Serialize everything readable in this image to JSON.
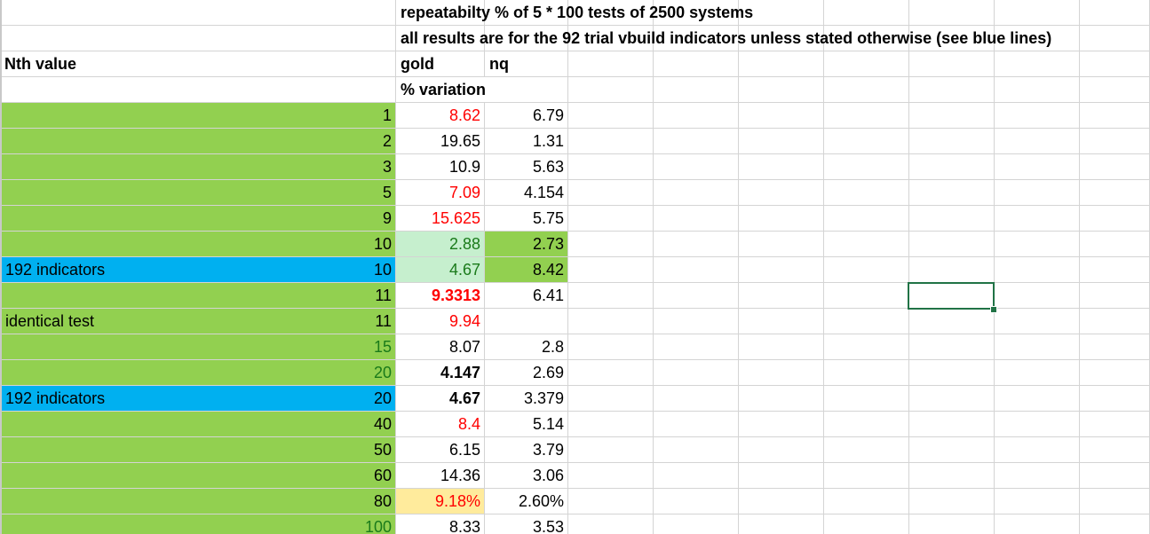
{
  "notes": {
    "line1": "repeatabilty % of 5 * 100 tests of 2500 systems",
    "line2": "all results are for the 92 trial vbuild indicators unless stated otherwise (see blue lines)"
  },
  "header": {
    "nth_value": "Nth value",
    "gold": "gold",
    "nq": "nq",
    "variation": "% variation"
  },
  "colors": {
    "green_fill": "#92d050",
    "blue_fill": "#00b0f0",
    "light_green_fill": "#c6efce",
    "yellow_fill": "#ffeb9c",
    "red_text": "#ff0000",
    "selection_border": "#217346"
  },
  "rows": [
    {
      "label": "",
      "n": "1",
      "gold": "8.62",
      "nq": "6.79"
    },
    {
      "label": "",
      "n": "2",
      "gold": "19.65",
      "nq": "1.31"
    },
    {
      "label": "",
      "n": "3",
      "gold": "10.9",
      "nq": "5.63"
    },
    {
      "label": "",
      "n": "5",
      "gold": "7.09",
      "nq": "4.154"
    },
    {
      "label": "",
      "n": "9",
      "gold": "15.625",
      "nq": "5.75"
    },
    {
      "label": "",
      "n": "10",
      "gold": "2.88",
      "nq": "2.73"
    },
    {
      "label": "192 indicators",
      "n": "10",
      "gold": "4.67",
      "nq": "8.42"
    },
    {
      "label": "",
      "n": "11",
      "gold": "9.3313",
      "nq": "6.41"
    },
    {
      "label": "identical test",
      "n": "11",
      "gold": "9.94",
      "nq": ""
    },
    {
      "label": "",
      "n": "15",
      "gold": "8.07",
      "nq": "2.8"
    },
    {
      "label": "",
      "n": "20",
      "gold": "4.147",
      "nq": "2.69"
    },
    {
      "label": "192 indicators",
      "n": "20",
      "gold": "4.67",
      "nq": "3.379"
    },
    {
      "label": "",
      "n": "40",
      "gold": "8.4",
      "nq": "5.14"
    },
    {
      "label": "",
      "n": "50",
      "gold": "6.15",
      "nq": "3.79"
    },
    {
      "label": "",
      "n": "60",
      "gold": "14.36",
      "nq": "3.06"
    },
    {
      "label": "",
      "n": "80",
      "gold": "9.18%",
      "nq": "2.60%"
    },
    {
      "label": "",
      "n": "100",
      "gold": "8.33",
      "nq": "3.53"
    }
  ]
}
